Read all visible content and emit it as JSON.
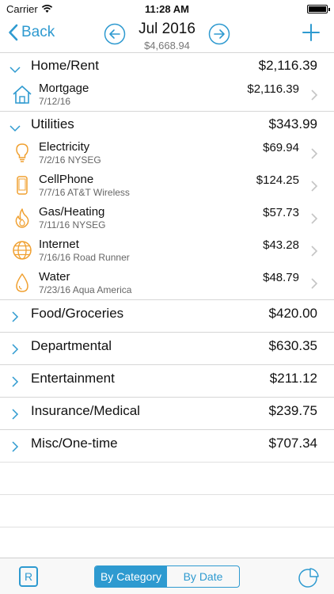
{
  "status_bar": {
    "carrier": "Carrier",
    "time": "11:28 AM"
  },
  "nav": {
    "back_label": "Back",
    "title": "Jul 2016",
    "subtitle": "$4,668.94"
  },
  "categories_expanded": [
    {
      "name": "Home/Rent",
      "amount": "$2,116.39",
      "items": [
        {
          "name": "Mortgage",
          "sub": "7/12/16",
          "amount": "$2,116.39",
          "icon": "house-icon"
        }
      ]
    },
    {
      "name": "Utilities",
      "amount": "$343.99",
      "items": [
        {
          "name": "Electricity",
          "sub": "7/2/16 NYSEG",
          "amount": "$69.94",
          "icon": "lightbulb-icon"
        },
        {
          "name": "CellPhone",
          "sub": "7/7/16 AT&T Wireless",
          "amount": "$124.25",
          "icon": "cellphone-icon"
        },
        {
          "name": "Gas/Heating",
          "sub": "7/11/16 NYSEG",
          "amount": "$57.73",
          "icon": "flame-icon"
        },
        {
          "name": "Internet",
          "sub": "7/16/16 Road Runner",
          "amount": "$43.28",
          "icon": "globe-icon"
        },
        {
          "name": "Water",
          "sub": "7/23/16 Aqua America",
          "amount": "$48.79",
          "icon": "water-drop-icon"
        }
      ]
    }
  ],
  "categories_collapsed": [
    {
      "name": "Food/Groceries",
      "amount": "$420.00"
    },
    {
      "name": "Departmental",
      "amount": "$630.35"
    },
    {
      "name": "Entertainment",
      "amount": "$211.12"
    },
    {
      "name": "Insurance/Medical",
      "amount": "$239.75"
    },
    {
      "name": "Misc/One-time",
      "amount": "$707.34"
    }
  ],
  "tabbar": {
    "r_label": "R",
    "segments": [
      "By Category",
      "By Date"
    ],
    "active_segment": "By Category"
  },
  "colors": {
    "accent": "#2e9ad0",
    "icon_orange": "#f0a030"
  }
}
